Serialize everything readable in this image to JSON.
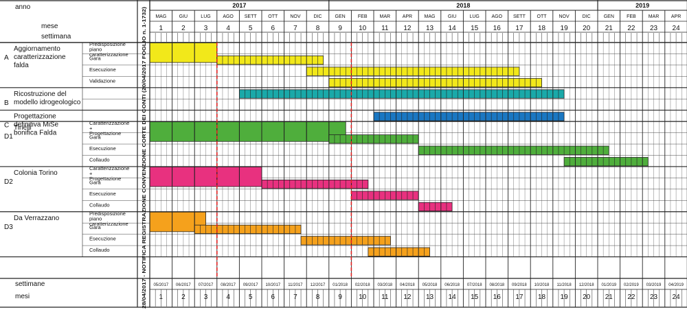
{
  "header": {
    "anno_label": "anno",
    "mese_label": "mese",
    "settimana_label": "settimana",
    "footer_settimane_label": "settimane",
    "footer_mesi_label": "mesi"
  },
  "vertical_note": "28/04/2017 - NOTIFICA REGISTRAZIONE CONVENZIONE CORTE DEI CONTI (20/04/2017 FOGLIO n. 1-1732)",
  "years": [
    {
      "label": "2017",
      "from": 1,
      "to": 8
    },
    {
      "label": "2018",
      "from": 9,
      "to": 20
    },
    {
      "label": "2019",
      "from": 21,
      "to": 24
    }
  ],
  "months": [
    "MAG",
    "GIU",
    "LUG",
    "AGO",
    "SETT",
    "OTT",
    "NOV",
    "DIC",
    "GEN",
    "FEB",
    "MAR",
    "APR",
    "MAG",
    "GIU",
    "LUG",
    "AGO",
    "SETT",
    "OTT",
    "NOV",
    "DIC",
    "GEN",
    "FEB",
    "MAR",
    "APR"
  ],
  "month_numbers": [
    "1",
    "2",
    "3",
    "4",
    "5",
    "6",
    "7",
    "8",
    "9",
    "10",
    "11",
    "12",
    "13",
    "14",
    "15",
    "16",
    "17",
    "18",
    "19",
    "20",
    "21",
    "22",
    "23",
    "24"
  ],
  "month_dates": [
    "05/2017",
    "06/2017",
    "07/2017",
    "08/2017",
    "09/2017",
    "10/2017",
    "11/2017",
    "12/2017",
    "01/2018",
    "02/2018",
    "03/2018",
    "04/2018",
    "05/2018",
    "06/2018",
    "07/2018",
    "08/2018",
    "09/2018",
    "10/2018",
    "11/2018",
    "12/2018",
    "01/2019",
    "02/2019",
    "03/2019",
    "04/2019"
  ],
  "milestones_after_month": [
    3,
    9
  ],
  "groups": [
    {
      "code": "A",
      "title": "Aggiornamento caratterizzazione falda",
      "rows": 4
    },
    {
      "code": "B",
      "title": "Ricostruzione del modello idrogeologico",
      "rows": 2
    },
    {
      "code": "C",
      "title": "Progettazione definitiva MiSe bonifica Falda",
      "rows": 1
    },
    {
      "code": "D1",
      "title": "Tinelli",
      "rows": 4
    },
    {
      "code": "D2",
      "title": "Colonia Torino",
      "rows": 4
    },
    {
      "code": "D3",
      "title": "Da Verrazzano",
      "rows": 4
    }
  ],
  "tasks": [
    {
      "group": "A",
      "label": "Predisposizione piano caratterizzazione",
      "start_month": 1,
      "end_month": 3,
      "color": "#f2e81a",
      "weekly": false
    },
    {
      "group": "A",
      "label": "Gara",
      "start_month": 4,
      "end_month": 7.75,
      "color": "#f2e81a",
      "weekly": true
    },
    {
      "group": "A",
      "label": "Esecuzione",
      "start_month": 8,
      "end_month": 16.5,
      "color": "#f2e81a",
      "weekly": true
    },
    {
      "group": "A",
      "label": "Validazione",
      "start_month": 9,
      "end_month": 17.5,
      "color": "#f2e81a",
      "weekly": true
    },
    {
      "group": "B",
      "label": "",
      "start_month": 5,
      "end_month": 18.5,
      "color": "#1aa9a9",
      "weekly": true
    },
    {
      "group": "C",
      "label": "",
      "start_month": 11,
      "end_month": 18.5,
      "color": "#1a77c2",
      "weekly": true
    },
    {
      "group": "D1",
      "label": "Caratterizzazione + Progettazione",
      "start_month": 1,
      "end_month": 8.75,
      "color": "#4fae3c",
      "weekly": false
    },
    {
      "group": "D1",
      "label": "Gara",
      "start_month": 9,
      "end_month": 12,
      "color": "#4fae3c",
      "weekly": true
    },
    {
      "group": "D1",
      "label": "Esecuzione",
      "start_month": 13,
      "end_month": 20.5,
      "color": "#4fae3c",
      "weekly": true
    },
    {
      "group": "D1",
      "label": "Collaudo",
      "start_month": 19.5,
      "end_month": 22.25,
      "color": "#4fae3c",
      "weekly": true
    },
    {
      "group": "D2",
      "label": "Caratterizzazione + Progettazione",
      "start_month": 1,
      "end_month": 5,
      "color": "#e8317f",
      "weekly": false
    },
    {
      "group": "D2",
      "label": "Gara",
      "start_month": 6,
      "end_month": 9.75,
      "color": "#e8317f",
      "weekly": true
    },
    {
      "group": "D2",
      "label": "Esecuzione",
      "start_month": 10,
      "end_month": 12,
      "color": "#e8317f",
      "weekly": true
    },
    {
      "group": "D2",
      "label": "Collaudo",
      "start_month": 13,
      "end_month": 13.5,
      "color": "#e8317f",
      "weekly": true
    },
    {
      "group": "D3",
      "label": "Predisposizione piano caratterizzazione",
      "start_month": 1,
      "end_month": 2.5,
      "color": "#f5a11c",
      "weekly": false
    },
    {
      "group": "D3",
      "label": "Gara",
      "start_month": 3,
      "end_month": 6.75,
      "color": "#f5a11c",
      "weekly": true
    },
    {
      "group": "D3",
      "label": "Esecuzione",
      "start_month": 7.75,
      "end_month": 10.75,
      "color": "#f5a11c",
      "weekly": true
    },
    {
      "group": "D3",
      "label": "Collaudo",
      "start_month": 10.75,
      "end_month": 12.5,
      "color": "#f5a11c",
      "weekly": true
    }
  ]
}
